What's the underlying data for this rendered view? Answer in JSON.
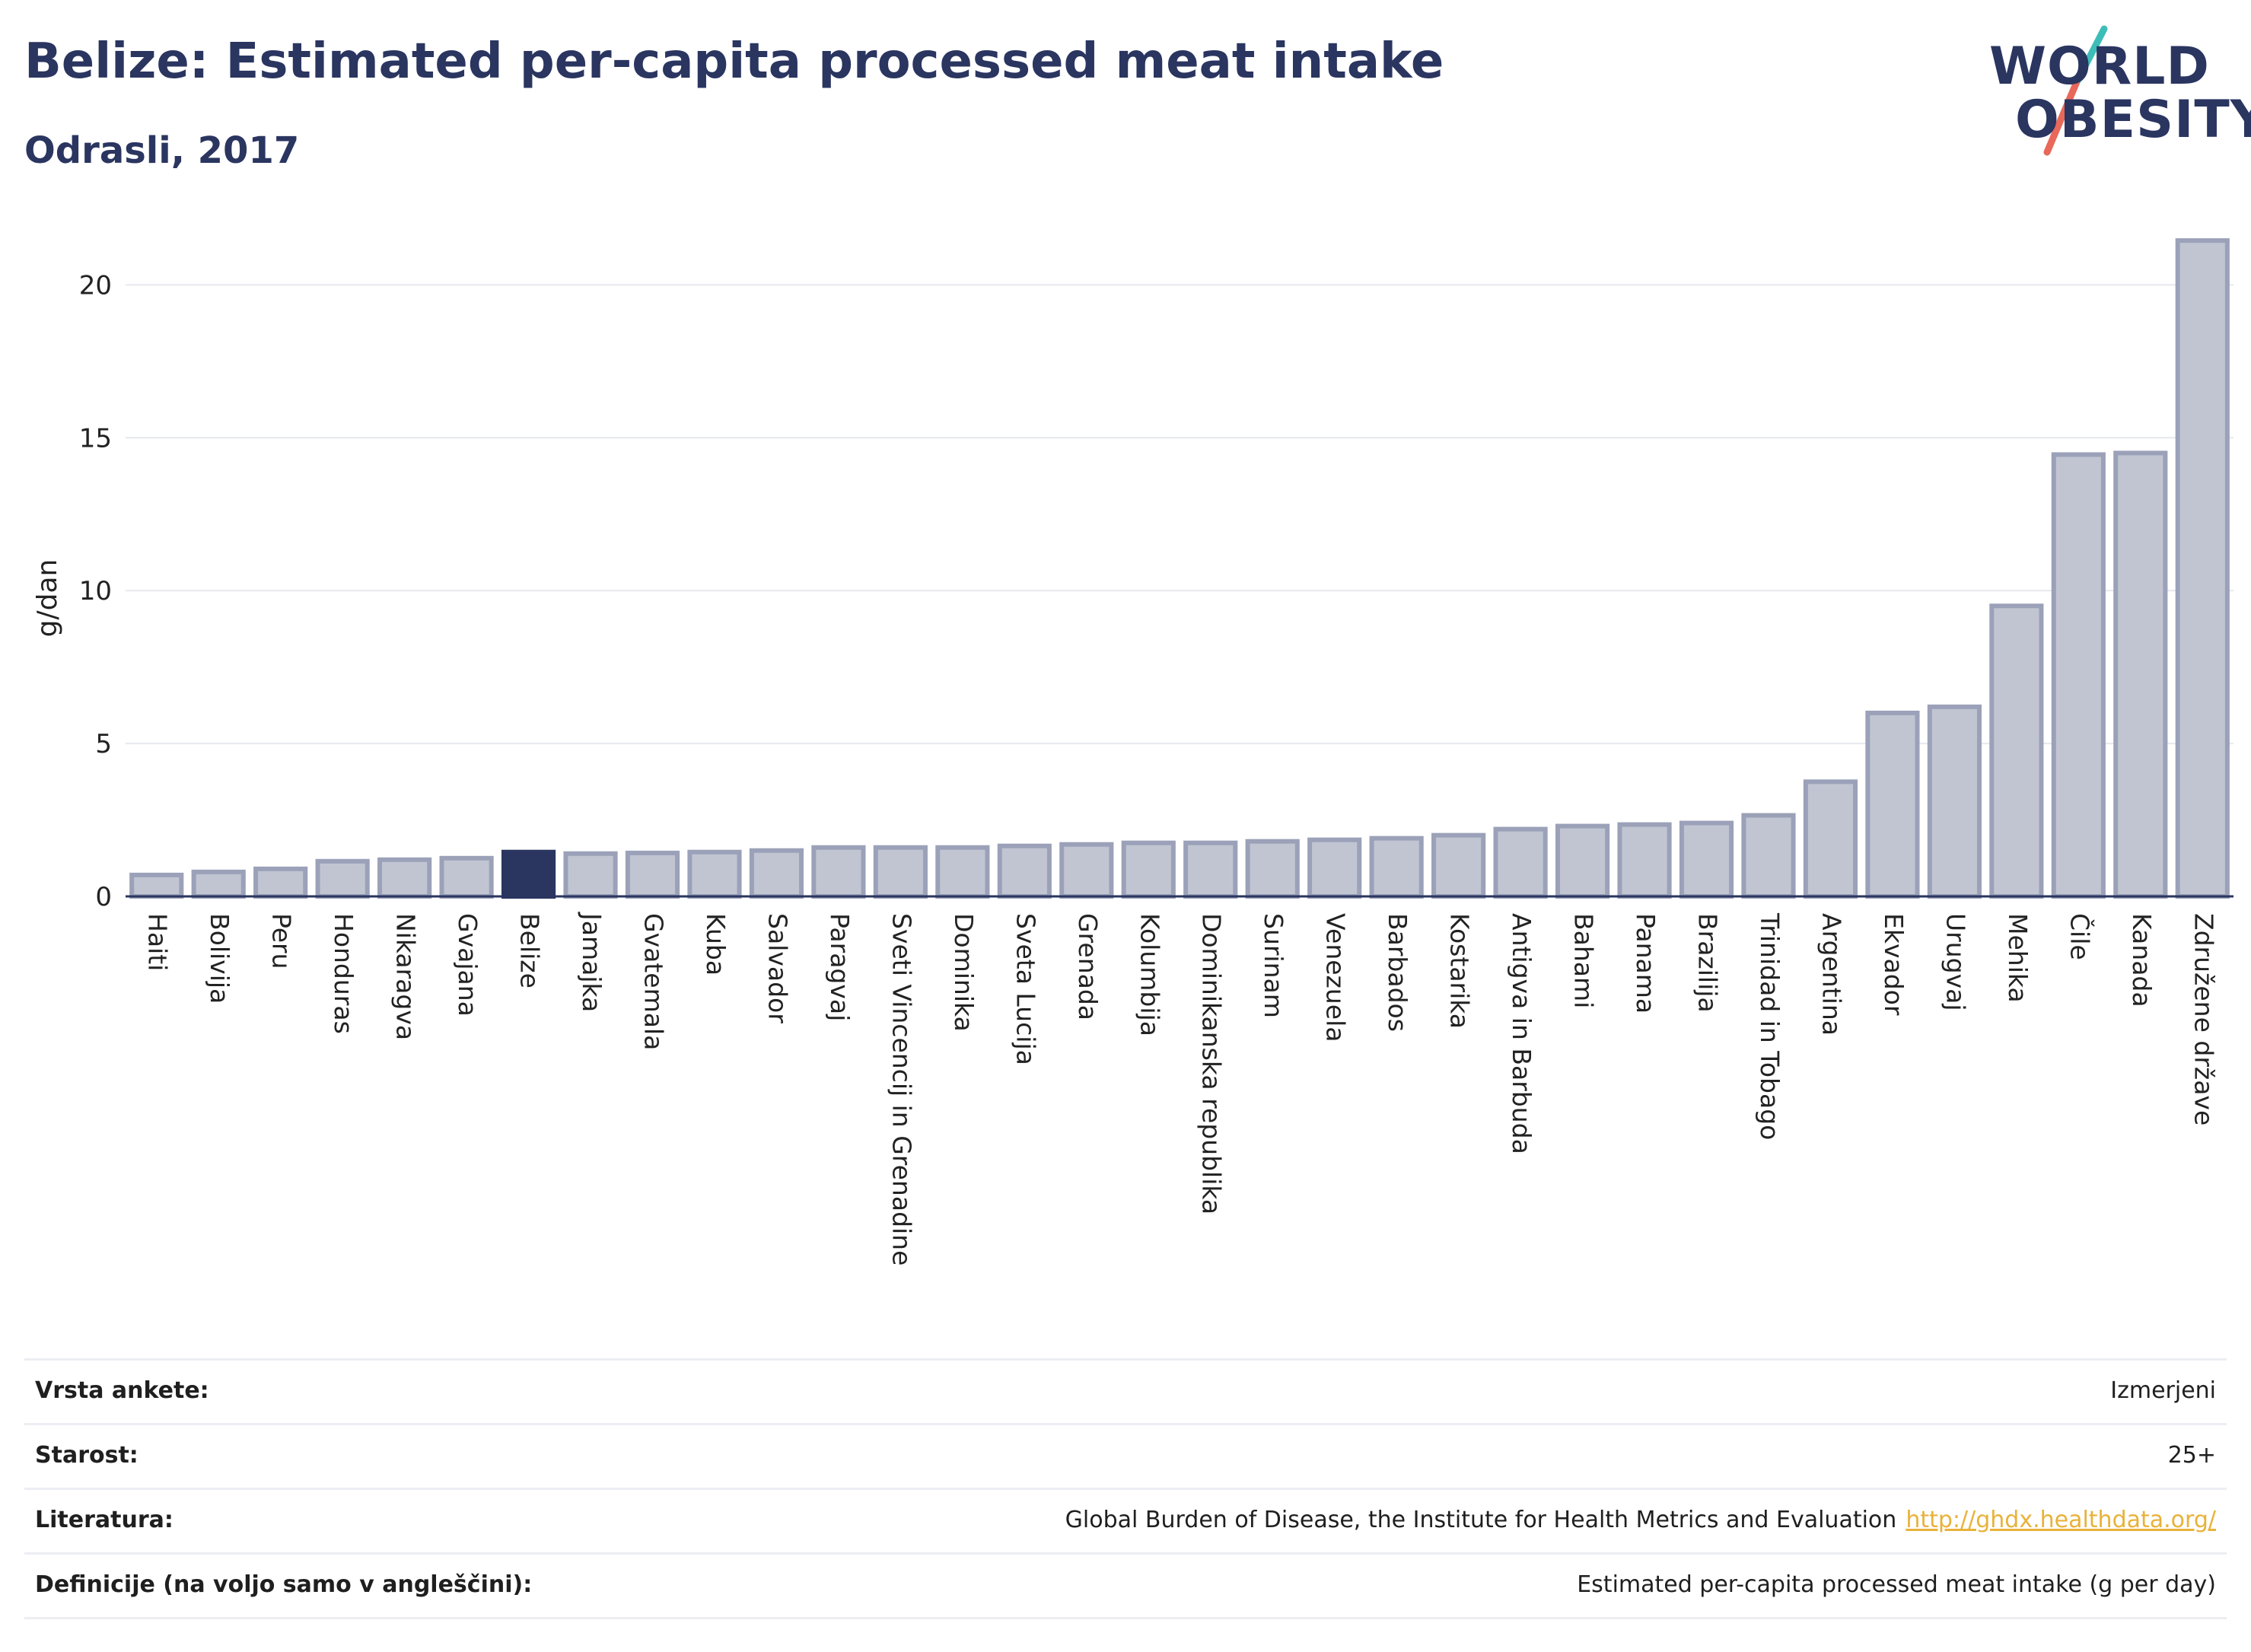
{
  "header": {
    "title": "Belize: Estimated per-capita processed meat intake",
    "subtitle": "Odrasli, 2017"
  },
  "logo": {
    "line1": "WORLD",
    "line2": "OBESITY",
    "colors": {
      "text": "#2a3560",
      "slash_top": "#3dbdb8",
      "slash_bottom": "#e8685a"
    }
  },
  "chart_data": {
    "type": "bar",
    "title": "Belize: Estimated per-capita processed meat intake",
    "subtitle": "Odrasli, 2017",
    "ylabel": "g/dan",
    "ylim": [
      0,
      22
    ],
    "yticks": [
      0,
      5,
      10,
      15,
      20
    ],
    "grid": true,
    "highlight": "Belize",
    "colors": {
      "bar_fill": "#c1c5d2",
      "bar_stroke": "#9ba1b8",
      "highlight": "#2a3560",
      "grid": "#e6e8ee",
      "axis": "#2a3560"
    },
    "categories": [
      "Haiti",
      "Bolivija",
      "Peru",
      "Honduras",
      "Nikaragva",
      "Gvajana",
      "Belize",
      "Jamajka",
      "Gvatemala",
      "Kuba",
      "Salvador",
      "Paragvaj",
      "Sveti Vincencij in Grenadine",
      "Dominika",
      "Sveta Lucija",
      "Grenada",
      "Kolumbija",
      "Dominikanska republika",
      "Surinam",
      "Venezuela",
      "Barbados",
      "Kostarika",
      "Antigva in Barbuda",
      "Bahami",
      "Panama",
      "Brazilija",
      "Trinidad in Tobago",
      "Argentina",
      "Ekvador",
      "Urugvaj",
      "Mehika",
      "Čile",
      "Kanada",
      "Združene države"
    ],
    "values": [
      0.7,
      0.8,
      0.9,
      1.15,
      1.2,
      1.25,
      1.45,
      1.4,
      1.42,
      1.45,
      1.5,
      1.6,
      1.6,
      1.6,
      1.65,
      1.7,
      1.75,
      1.75,
      1.8,
      1.85,
      1.9,
      2.0,
      2.2,
      2.3,
      2.35,
      2.4,
      2.65,
      3.75,
      6.0,
      6.2,
      9.5,
      14.45,
      14.5,
      21.45
    ]
  },
  "info": {
    "rows": [
      {
        "label": "Vrsta ankete:",
        "value": "Izmerjeni"
      },
      {
        "label": "Starost:",
        "value": "25+"
      },
      {
        "label": "Literatura:",
        "value": "Global Burden of Disease, the Institute for Health Metrics and Evaluation",
        "link": "http://ghdx.healthdata.org/"
      },
      {
        "label": "Definicije (na voljo samo v angleščini):",
        "value": "Estimated per-capita processed meat intake (g per day)"
      }
    ]
  }
}
